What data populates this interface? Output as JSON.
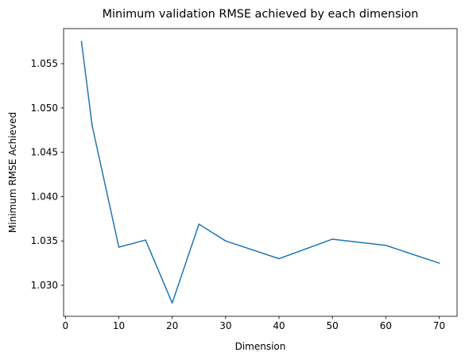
{
  "chart_data": {
    "type": "line",
    "title": "Minimum validation RMSE achieved by each dimension",
    "xlabel": "Dimension",
    "ylabel": "Minimum RMSE Achieved",
    "xlim": [
      -0.35,
      73.35
    ],
    "ylim": [
      1.0265,
      1.05895
    ],
    "xticks": [
      0,
      10,
      20,
      30,
      40,
      50,
      60,
      70
    ],
    "xtick_labels": [
      "0",
      "10",
      "20",
      "30",
      "40",
      "50",
      "60",
      "70"
    ],
    "yticks": [
      1.03,
      1.035,
      1.04,
      1.045,
      1.05,
      1.055
    ],
    "ytick_labels": [
      "1.030",
      "1.035",
      "1.040",
      "1.045",
      "1.050",
      "1.055"
    ],
    "grid": false,
    "series": [
      {
        "color": "#1f77b4",
        "x": [
          3,
          5,
          10,
          15,
          20,
          25,
          30,
          40,
          50,
          60,
          70
        ],
        "y": [
          1.0575,
          1.048,
          1.0343,
          1.0351,
          1.028,
          1.0369,
          1.035,
          1.033,
          1.0352,
          1.0345,
          1.0325
        ]
      }
    ]
  }
}
